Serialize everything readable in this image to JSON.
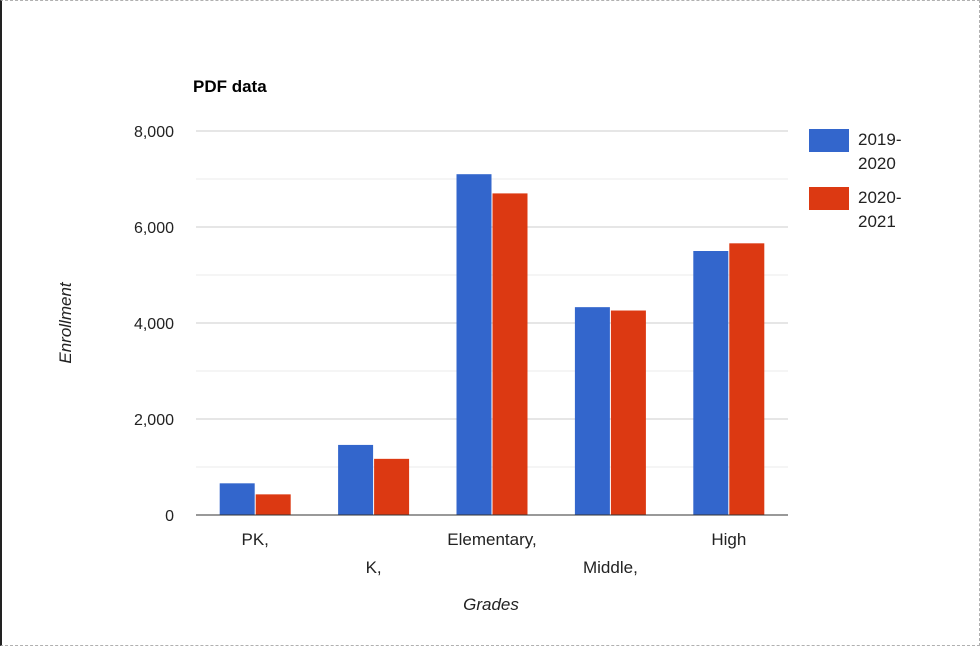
{
  "chart_data": {
    "type": "bar",
    "title": "PDF data",
    "xlabel": "Grades",
    "ylabel": "Enrollment",
    "categories": [
      "PK,",
      "K,",
      "Elementary,",
      "Middle,",
      "High"
    ],
    "series": [
      {
        "name": "2019-2020",
        "legend_lines": [
          "2019-",
          "2020"
        ],
        "color": "#3366cc",
        "values": [
          660,
          1460,
          7100,
          4330,
          5500
        ]
      },
      {
        "name": "2020-2021",
        "legend_lines": [
          "2020-",
          "2021"
        ],
        "color": "#dc3912",
        "values": [
          430,
          1170,
          6700,
          4260,
          5660
        ]
      }
    ],
    "ylim": [
      0,
      8000
    ],
    "yticks": [
      "0",
      "2,000",
      "4,000",
      "6,000",
      "8,000"
    ],
    "grid": true,
    "legend_position": "right"
  }
}
